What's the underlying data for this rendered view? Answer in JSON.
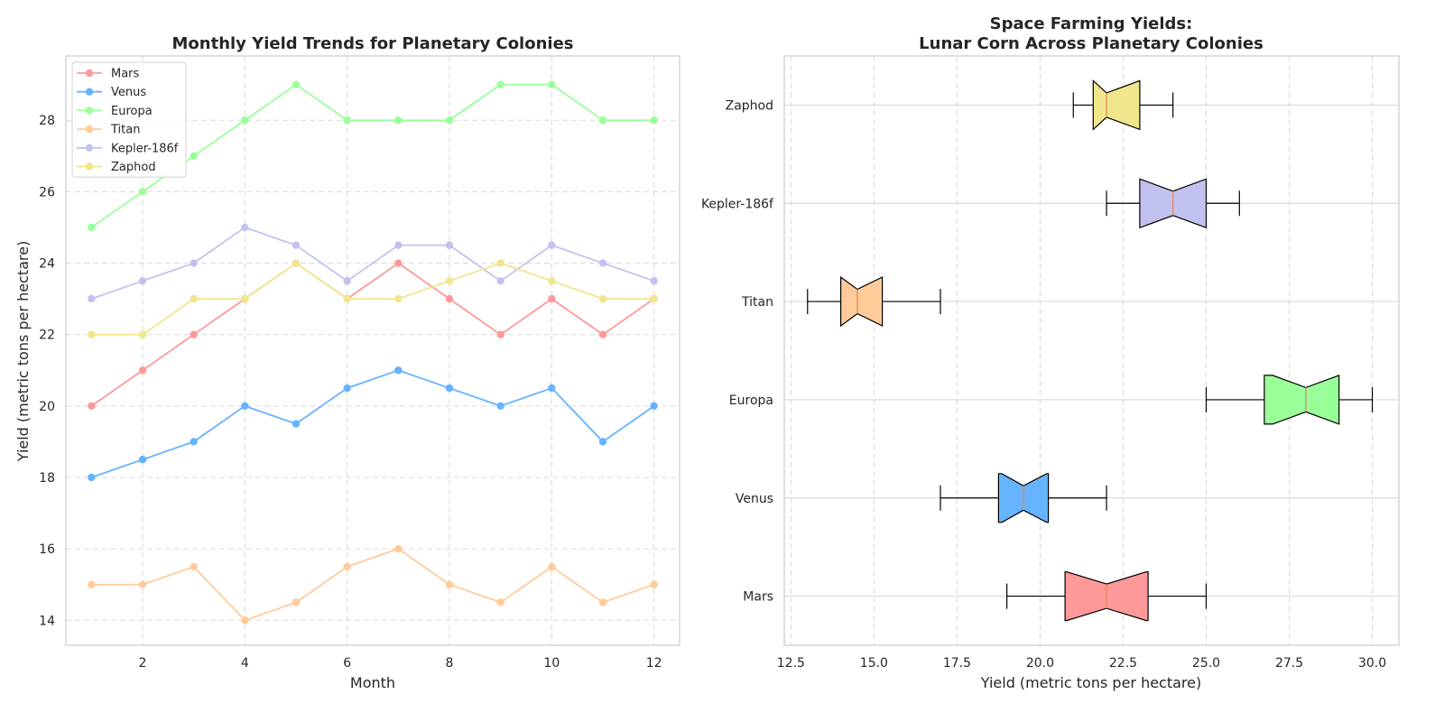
{
  "chart_data": [
    {
      "type": "line",
      "title": "Monthly Yield Trends for Planetary Colonies",
      "xlabel": "Month",
      "ylabel": "Yield (metric tons per hectare)",
      "xlim": [
        0.5,
        12.5
      ],
      "ylim": [
        13.3,
        29.8
      ],
      "xticks": [
        2,
        4,
        6,
        8,
        10,
        12
      ],
      "yticks": [
        14,
        16,
        18,
        20,
        22,
        24,
        26,
        28
      ],
      "grid": true,
      "legend_position": "top-left",
      "x": [
        1,
        2,
        3,
        4,
        5,
        6,
        7,
        8,
        9,
        10,
        11,
        12
      ],
      "series": [
        {
          "name": "Mars",
          "color": "#ff9999",
          "values": [
            20,
            21,
            22,
            23,
            24,
            23,
            24,
            23,
            22,
            23,
            22,
            23
          ]
        },
        {
          "name": "Venus",
          "color": "#66b3ff",
          "values": [
            18,
            18.5,
            19,
            20,
            19.5,
            20.5,
            21,
            20.5,
            20,
            20.5,
            19,
            20
          ]
        },
        {
          "name": "Europa",
          "color": "#99ff99",
          "values": [
            25,
            26,
            27,
            28,
            29,
            28,
            28,
            28,
            29,
            29,
            28,
            28
          ]
        },
        {
          "name": "Titan",
          "color": "#ffcc99",
          "values": [
            15,
            15,
            15.5,
            14,
            14.5,
            15.5,
            16,
            15,
            14.5,
            15.5,
            14.5,
            15
          ]
        },
        {
          "name": "Kepler-186f",
          "color": "#c2c2f0",
          "values": [
            23,
            23.5,
            24,
            25,
            24.5,
            23.5,
            24.5,
            24.5,
            23.5,
            24.5,
            24,
            23.5
          ]
        },
        {
          "name": "Zaphod",
          "color": "#f0e68c",
          "values": [
            22,
            22,
            23,
            23,
            24,
            23,
            23,
            23.5,
            24,
            23.5,
            23,
            23
          ]
        }
      ]
    },
    {
      "type": "box",
      "orientation": "horizontal",
      "notched": true,
      "title": "Space Farming Yields:\nLunar Corn Across Planetary Colonies",
      "title_lines": [
        "Space Farming Yields:",
        "Lunar Corn Across Planetary Colonies"
      ],
      "xlabel": "Yield (metric tons per hectare)",
      "xlim": [
        12.3,
        30.8
      ],
      "xticks": [
        12.5,
        15.0,
        17.5,
        20.0,
        22.5,
        25.0,
        27.5,
        30.0
      ],
      "grid": true,
      "categories": [
        "Mars",
        "Venus",
        "Europa",
        "Titan",
        "Kepler-186f",
        "Zaphod"
      ],
      "boxes": [
        {
          "label": "Mars",
          "color": "#ff9999",
          "whislo": 19,
          "q1": 20.75,
          "med": 22,
          "q3": 23.25,
          "whishi": 25,
          "notchlo": 20.8,
          "notchhi": 23.2
        },
        {
          "label": "Venus",
          "color": "#66b3ff",
          "whislo": 17,
          "q1": 18.75,
          "med": 19.5,
          "q3": 20.25,
          "whishi": 22,
          "notchlo": 18.85,
          "notchhi": 20.2
        },
        {
          "label": "Europa",
          "color": "#99ff99",
          "whislo": 25,
          "q1": 26.75,
          "med": 28,
          "q3": 29,
          "whishi": 30,
          "notchlo": 27.0,
          "notchhi": 29.0
        },
        {
          "label": "Titan",
          "color": "#ffcc99",
          "whislo": 13,
          "q1": 14,
          "med": 14.5,
          "q3": 15.25,
          "whishi": 17,
          "notchlo": 14.0,
          "notchhi": 15.25
        },
        {
          "label": "Kepler-186f",
          "color": "#c2c2f0",
          "whislo": 22,
          "q1": 23,
          "med": 24,
          "q3": 25,
          "whishi": 26,
          "notchlo": 23.0,
          "notchhi": 25.0
        },
        {
          "label": "Zaphod",
          "color": "#f0e68c",
          "whislo": 21,
          "q1": 21.6,
          "med": 22,
          "q3": 23,
          "whishi": 24,
          "notchlo": 21.6,
          "notchhi": 23.0
        }
      ]
    }
  ]
}
